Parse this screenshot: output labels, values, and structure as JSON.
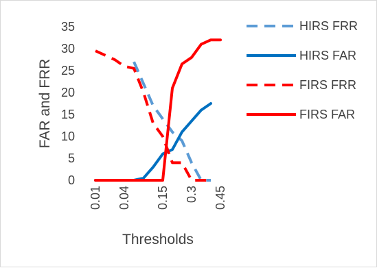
{
  "chart_data": {
    "type": "line",
    "title": "",
    "xlabel": "Thresholds",
    "ylabel": "FAR and FRR",
    "ylim": [
      0,
      35
    ],
    "yticks": [
      0,
      5,
      10,
      15,
      20,
      25,
      30,
      35
    ],
    "grid": false,
    "legend_position": "right",
    "x_tick_labels": [
      "0.01",
      "0.04",
      "0.15",
      "0.3",
      "0.45"
    ],
    "x": [
      0.01,
      0.02,
      0.03,
      0.04,
      0.05,
      0.07,
      0.1,
      0.15,
      0.2,
      0.25,
      0.3,
      0.35,
      0.4,
      0.45
    ],
    "series": [
      {
        "name": "HIRS FRR",
        "color": "#5b9bd5",
        "dash": "dashed",
        "values": [
          null,
          null,
          null,
          null,
          27,
          22,
          17,
          14,
          11,
          9,
          4,
          0,
          0,
          null
        ]
      },
      {
        "name": "HIRS FAR",
        "color": "#0070c0",
        "dash": "solid",
        "values": [
          0,
          0,
          0,
          0,
          0,
          0.5,
          3,
          6,
          7,
          11,
          13.5,
          16,
          17.5,
          null
        ]
      },
      {
        "name": "FIRS FRR",
        "color": "#ff0000",
        "dash": "dashed",
        "values": [
          29.5,
          28.5,
          27.5,
          26,
          25.5,
          20,
          13,
          10,
          4,
          4,
          0,
          0,
          0,
          null
        ]
      },
      {
        "name": "FIRS FAR",
        "color": "#ff0000",
        "dash": "solid",
        "values": [
          0,
          0,
          0,
          0,
          0,
          0,
          0,
          0,
          21,
          26.5,
          28,
          31,
          32,
          32
        ]
      }
    ]
  }
}
